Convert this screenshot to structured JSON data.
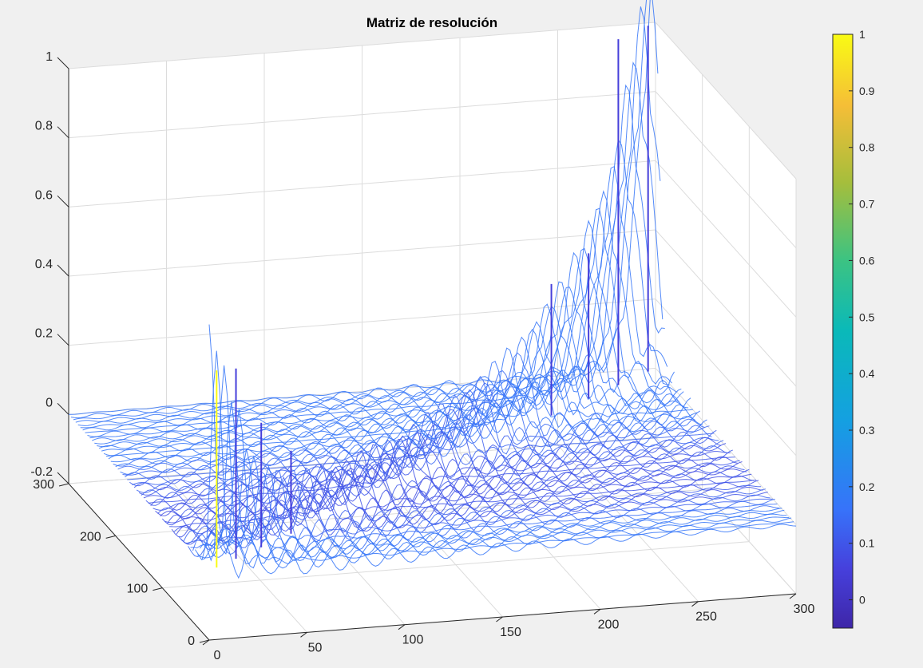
{
  "chart_data": {
    "type": "surface",
    "title": "Matriz de resolución",
    "xlabel": "",
    "ylabel": "",
    "zlabel": "",
    "xlim": [
      0,
      300
    ],
    "ylim": [
      0,
      300
    ],
    "zlim": [
      -0.2,
      1
    ],
    "x_ticks": [
      0,
      50,
      100,
      150,
      200,
      250,
      300
    ],
    "y_ticks": [
      0,
      100,
      200,
      300
    ],
    "z_ticks": [
      -0.2,
      0,
      0.2,
      0.4,
      0.6,
      0.8,
      1
    ],
    "x_tick_labels": [
      "0",
      "50",
      "100",
      "150",
      "200",
      "250",
      "300"
    ],
    "y_tick_labels": [
      "0",
      "100",
      "200",
      "300"
    ],
    "z_tick_labels": [
      "-0.2",
      "0",
      "0.2",
      "0.4",
      "0.6",
      "0.8",
      "1"
    ],
    "grid": true,
    "colormap": "parula",
    "colorbar": {
      "location": "right",
      "limits": [
        -0.05,
        1
      ],
      "ticks": [
        0,
        0.1,
        0.2,
        0.3,
        0.4,
        0.5,
        0.6,
        0.7,
        0.8,
        0.9,
        1
      ],
      "tick_labels": [
        "0",
        "0.1",
        "0.2",
        "0.3",
        "0.4",
        "0.5",
        "0.6",
        "0.7",
        "0.8",
        "0.9",
        "1"
      ]
    },
    "peaks": [
      {
        "x": 5,
        "y": 5,
        "z": 0.57
      },
      {
        "x": 18,
        "y": 18,
        "z": 0.55
      },
      {
        "x": 35,
        "y": 35,
        "z": 0.36
      },
      {
        "x": 55,
        "y": 55,
        "z": 0.24
      },
      {
        "x": 230,
        "y": 230,
        "z": 0.38
      },
      {
        "x": 255,
        "y": 255,
        "z": 0.42
      },
      {
        "x": 275,
        "y": 275,
        "z": 1.0
      },
      {
        "x": 295,
        "y": 295,
        "z": 1.0
      }
    ],
    "diagonal_ridge_z": [
      0.57,
      0.2,
      0.12,
      0.1,
      0.1,
      0.12,
      0.15,
      0.2,
      0.3,
      0.5,
      1.0
    ],
    "off_diagonal_range": [
      -0.05,
      0.05
    ]
  }
}
